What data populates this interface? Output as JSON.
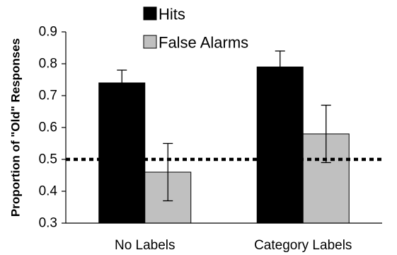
{
  "chart_data": {
    "type": "bar",
    "title": "",
    "xlabel": "",
    "ylabel": "Proportion of \"Old\" Responses",
    "categories": [
      "No Labels",
      "Category Labels"
    ],
    "series": [
      {
        "name": "Hits",
        "color": "#000000",
        "values": [
          0.74,
          0.79
        ],
        "error_lower": [
          0.72,
          0.75
        ],
        "error_upper": [
          0.78,
          0.84
        ]
      },
      {
        "name": "False Alarms",
        "color": "#c0c0c0",
        "values": [
          0.46,
          0.58
        ],
        "error_lower": [
          0.37,
          0.49
        ],
        "error_upper": [
          0.55,
          0.67
        ]
      }
    ],
    "ylim": [
      0.3,
      0.9
    ],
    "yticks": [
      "0.3",
      "0.4",
      "0.5",
      "0.6",
      "0.7",
      "0.8",
      "0.9"
    ],
    "reference_line": {
      "value": 0.5,
      "style": "dotted"
    },
    "legend_position": "top-center",
    "grid": false
  }
}
